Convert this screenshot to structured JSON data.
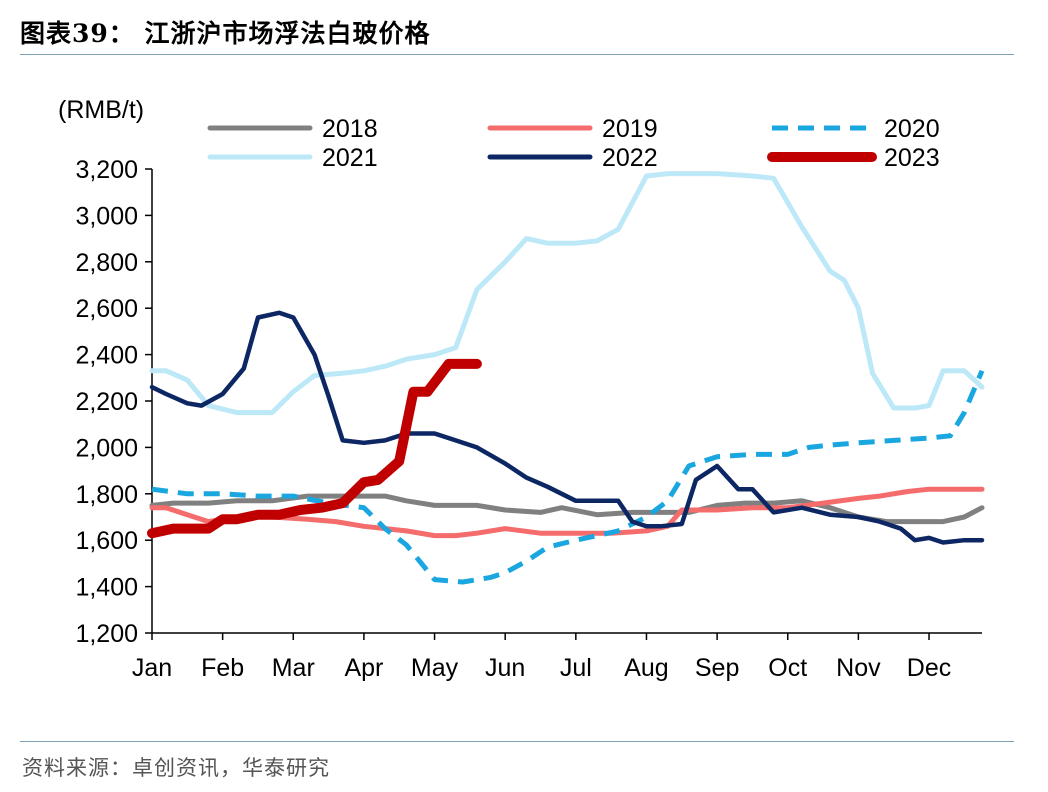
{
  "header": {
    "title": "图表39：  江浙沪市场浮法白玻价格"
  },
  "footer": {
    "source": "资料来源：卓创资讯，华泰研究"
  },
  "chart_data": {
    "type": "line",
    "title": "",
    "ylabel": "(RMB/t)",
    "xlabel": "",
    "ylim": [
      1200,
      3200
    ],
    "yticks": [
      1200,
      1400,
      1600,
      1800,
      2000,
      2200,
      2400,
      2600,
      2800,
      3000,
      3200
    ],
    "ytick_labels": [
      "1,200",
      "1,400",
      "1,600",
      "1,800",
      "2,000",
      "2,200",
      "2,400",
      "2,600",
      "2,800",
      "3,000",
      "3,200"
    ],
    "xlim": [
      1,
      12.75
    ],
    "months": [
      "Jan",
      "Feb",
      "Mar",
      "Apr",
      "May",
      "Jun",
      "Jul",
      "Aug",
      "Sep",
      "Oct",
      "Nov",
      "Dec"
    ],
    "legend_position": "top",
    "series": [
      {
        "name": "2018",
        "color": "#808080",
        "dash": false,
        "x": [
          1.0,
          1.3,
          1.8,
          2.2,
          2.7,
          3.2,
          3.6,
          4.0,
          4.3,
          4.6,
          5.0,
          5.3,
          5.6,
          6.0,
          6.5,
          6.8,
          7.3,
          7.8,
          8.2,
          8.6,
          9.0,
          9.4,
          9.8,
          10.2,
          10.6,
          11.0,
          11.4,
          11.8,
          12.2,
          12.5,
          12.75
        ],
        "y": [
          1750,
          1760,
          1760,
          1770,
          1770,
          1790,
          1790,
          1790,
          1790,
          1770,
          1750,
          1750,
          1750,
          1730,
          1720,
          1740,
          1710,
          1720,
          1720,
          1720,
          1750,
          1760,
          1760,
          1770,
          1740,
          1700,
          1680,
          1680,
          1680,
          1700,
          1740
        ]
      },
      {
        "name": "2019",
        "color": "#f56c6c",
        "dash": false,
        "x": [
          1.0,
          1.2,
          1.5,
          1.8,
          2.2,
          2.7,
          3.2,
          3.6,
          4.0,
          4.3,
          4.6,
          5.0,
          5.3,
          5.6,
          6.0,
          6.5,
          7.0,
          7.5,
          8.0,
          8.3,
          8.5,
          9.0,
          9.5,
          10.0,
          10.5,
          11.0,
          11.3,
          11.7,
          12.0,
          12.5,
          12.75
        ],
        "y": [
          1740,
          1740,
          1710,
          1680,
          1700,
          1700,
          1690,
          1680,
          1660,
          1650,
          1640,
          1620,
          1620,
          1630,
          1650,
          1630,
          1630,
          1630,
          1640,
          1660,
          1730,
          1730,
          1740,
          1740,
          1760,
          1780,
          1790,
          1810,
          1820,
          1820,
          1820
        ]
      },
      {
        "name": "2020",
        "color": "#1aa7e0",
        "dash": true,
        "x": [
          1.0,
          1.5,
          2.0,
          2.5,
          3.0,
          3.5,
          4.0,
          4.3,
          4.6,
          5.0,
          5.4,
          5.8,
          6.0,
          6.3,
          6.6,
          7.0,
          7.3,
          7.6,
          8.0,
          8.3,
          8.6,
          9.0,
          9.5,
          10.0,
          10.3,
          10.6,
          11.0,
          11.5,
          12.0,
          12.3,
          12.5,
          12.75
        ],
        "y": [
          1820,
          1800,
          1800,
          1790,
          1790,
          1760,
          1740,
          1650,
          1580,
          1430,
          1420,
          1440,
          1460,
          1510,
          1570,
          1600,
          1620,
          1640,
          1700,
          1770,
          1920,
          1960,
          1970,
          1970,
          2000,
          2010,
          2020,
          2030,
          2040,
          2050,
          2150,
          2330
        ]
      },
      {
        "name": "2021",
        "color": "#bde8f8",
        "dash": false,
        "x": [
          1.0,
          1.2,
          1.5,
          1.8,
          2.2,
          2.7,
          3.0,
          3.3,
          3.7,
          4.0,
          4.3,
          4.6,
          5.0,
          5.3,
          5.6,
          6.0,
          6.3,
          6.6,
          7.0,
          7.3,
          7.6,
          8.0,
          8.3,
          8.5,
          9.0,
          9.5,
          9.8,
          10.2,
          10.6,
          10.8,
          11.0,
          11.2,
          11.5,
          11.8,
          12.0,
          12.2,
          12.5,
          12.75
        ],
        "y": [
          2330,
          2330,
          2290,
          2180,
          2150,
          2150,
          2240,
          2310,
          2320,
          2330,
          2350,
          2380,
          2400,
          2430,
          2680,
          2800,
          2900,
          2880,
          2880,
          2890,
          2940,
          3170,
          3180,
          3180,
          3180,
          3170,
          3160,
          2950,
          2760,
          2720,
          2600,
          2320,
          2170,
          2170,
          2180,
          2330,
          2330,
          2260
        ]
      },
      {
        "name": "2022",
        "color": "#0c2763",
        "dash": false,
        "x": [
          1.0,
          1.2,
          1.5,
          1.7,
          2.0,
          2.3,
          2.5,
          2.8,
          3.0,
          3.3,
          3.5,
          3.7,
          4.0,
          4.3,
          4.6,
          5.0,
          5.3,
          5.6,
          6.0,
          6.3,
          6.6,
          7.0,
          7.3,
          7.6,
          7.8,
          8.0,
          8.2,
          8.5,
          8.7,
          9.0,
          9.3,
          9.5,
          9.8,
          10.2,
          10.6,
          11.0,
          11.3,
          11.6,
          11.8,
          12.0,
          12.2,
          12.5,
          12.75
        ],
        "y": [
          2260,
          2230,
          2190,
          2180,
          2230,
          2340,
          2560,
          2580,
          2560,
          2400,
          2220,
          2030,
          2020,
          2030,
          2060,
          2060,
          2030,
          2000,
          1930,
          1870,
          1830,
          1770,
          1770,
          1770,
          1680,
          1660,
          1660,
          1670,
          1860,
          1920,
          1820,
          1820,
          1720,
          1740,
          1710,
          1700,
          1680,
          1650,
          1600,
          1610,
          1590,
          1600,
          1600
        ]
      },
      {
        "name": "2023",
        "color": "#c00000",
        "dash": false,
        "x": [
          1.0,
          1.3,
          1.8,
          2.0,
          2.2,
          2.5,
          2.8,
          3.1,
          3.4,
          3.7,
          4.0,
          4.2,
          4.5,
          4.7,
          4.9,
          5.0,
          5.2,
          5.4,
          5.6
        ],
        "y": [
          1630,
          1650,
          1650,
          1690,
          1690,
          1710,
          1710,
          1730,
          1740,
          1760,
          1850,
          1860,
          1940,
          2240,
          2240,
          2280,
          2360,
          2360,
          2360
        ]
      }
    ]
  }
}
